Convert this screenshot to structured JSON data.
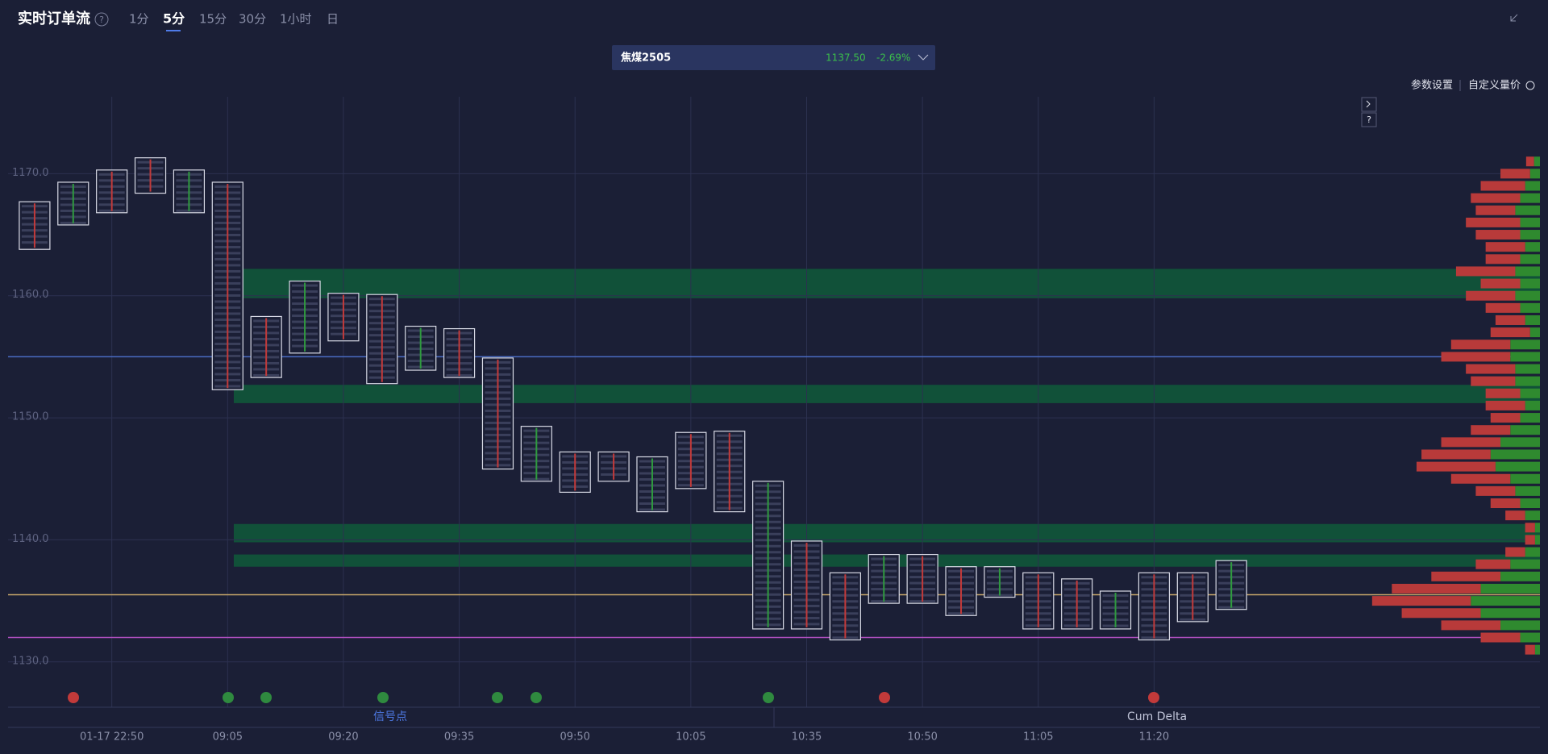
{
  "header": {
    "title": "实时订单流",
    "help": "?",
    "tabs": [
      "1分",
      "5分",
      "15分",
      "30分",
      "1小时",
      "日"
    ],
    "active_tab": 1
  },
  "instrument": {
    "name": "焦煤2505",
    "price": "1137.50",
    "change": "-2.69%"
  },
  "toolbar": [
    "参数设置",
    "自定义量价"
  ],
  "side_buttons": [
    "?"
  ],
  "chart_data": {
    "type": "footprint",
    "categories": [
      null,
      null,
      "01-17 22:50",
      null,
      null,
      "09:05",
      null,
      null,
      "09:20",
      null,
      null,
      "09:35",
      null,
      null,
      "09:50",
      null,
      null,
      "10:05",
      null,
      null,
      "10:35",
      null,
      null,
      "10:50",
      null,
      null,
      "11:05",
      null,
      null,
      "11:20",
      null,
      null
    ],
    "high": [
      1167.7,
      1169.3,
      1170.3,
      1171.3,
      1170.3,
      1169.3,
      1158.3,
      1161.2,
      1160.2,
      1160.1,
      1157.5,
      1157.3,
      1154.9,
      1149.3,
      1147.2,
      1147.2,
      1146.8,
      1148.8,
      1148.9,
      1144.8,
      1139.9,
      1137.3,
      1138.8,
      1138.8,
      1137.8,
      1137.8,
      1137.3,
      1136.8,
      1135.8,
      1137.3,
      1137.3,
      1138.3
    ],
    "low": [
      1163.8,
      1165.8,
      1166.8,
      1168.4,
      1166.8,
      1152.3,
      1153.3,
      1155.3,
      1156.3,
      1152.8,
      1153.9,
      1153.3,
      1145.8,
      1144.8,
      1143.9,
      1144.8,
      1142.3,
      1144.2,
      1142.3,
      1132.7,
      1132.7,
      1131.8,
      1134.8,
      1134.8,
      1133.8,
      1135.3,
      1132.7,
      1132.7,
      1132.7,
      1131.8,
      1133.3,
      1134.3
    ],
    "ylim": [
      1128.4,
      1176.3
    ],
    "yticks": [
      {
        "value": 1130,
        "label": "1130.0"
      },
      {
        "value": 1140,
        "label": "1140.0"
      },
      {
        "value": 1150,
        "label": "1150.0"
      },
      {
        "value": 1160,
        "label": "1160.0"
      },
      {
        "value": 1170,
        "label": "1170.0"
      }
    ],
    "grid": true,
    "zones": [
      [
        1162.2,
        1159.8
      ],
      [
        1152.7,
        1151.2
      ],
      [
        1141.3,
        1139.8
      ],
      [
        1138.8,
        1137.8
      ]
    ],
    "zone_color": "#0f5a3a",
    "levels": [
      {
        "value": 1155.0,
        "color": "#4a6bc2"
      },
      {
        "value": 1135.5,
        "color": "#c9a86a"
      },
      {
        "value": 1132.0,
        "color": "#b04fc0"
      }
    ],
    "profile": {
      "prices": [
        1171,
        1170,
        1169,
        1168,
        1167,
        1166,
        1165,
        1164,
        1163,
        1162,
        1161,
        1160,
        1159,
        1158,
        1157,
        1156,
        1155,
        1154,
        1153,
        1152,
        1151,
        1150,
        1149,
        1148,
        1147,
        1146,
        1145,
        1144,
        1143,
        1142,
        1141,
        1140,
        1139,
        1138,
        1137,
        1136,
        1135,
        1134,
        1133,
        1132,
        1131
      ],
      "sell": [
        8,
        30,
        45,
        50,
        40,
        55,
        45,
        40,
        35,
        60,
        40,
        50,
        35,
        30,
        40,
        60,
        70,
        50,
        45,
        35,
        40,
        30,
        40,
        60,
        70,
        80,
        60,
        40,
        30,
        20,
        10,
        10,
        20,
        35,
        70,
        90,
        100,
        80,
        60,
        40,
        10
      ],
      "buy": [
        6,
        10,
        15,
        20,
        25,
        20,
        20,
        15,
        20,
        25,
        20,
        25,
        20,
        15,
        10,
        30,
        30,
        25,
        25,
        20,
        15,
        20,
        30,
        40,
        50,
        45,
        30,
        25,
        20,
        15,
        5,
        5,
        15,
        30,
        40,
        60,
        70,
        60,
        40,
        20,
        5
      ],
      "sell_color": "#b83a3a",
      "buy_color": "#2f8a2f"
    }
  },
  "bottom_tabs": [
    "信号点",
    "Cum Delta"
  ]
}
